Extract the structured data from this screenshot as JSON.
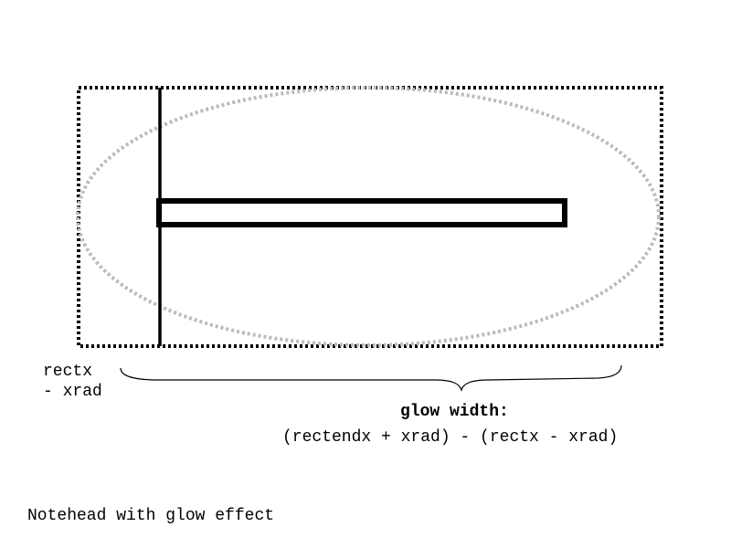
{
  "labels": {
    "rectx_line1": "rectx",
    "rectx_line2": "- xrad",
    "glow_title": "glow width:",
    "glow_formula": "(rectendx + xrad) - (rectx - xrad)",
    "caption": "Notehead with glow effect"
  },
  "colors": {
    "stroke": "#000000",
    "glow_ellipse": "#bbbbbb",
    "background": "#ffffff"
  }
}
